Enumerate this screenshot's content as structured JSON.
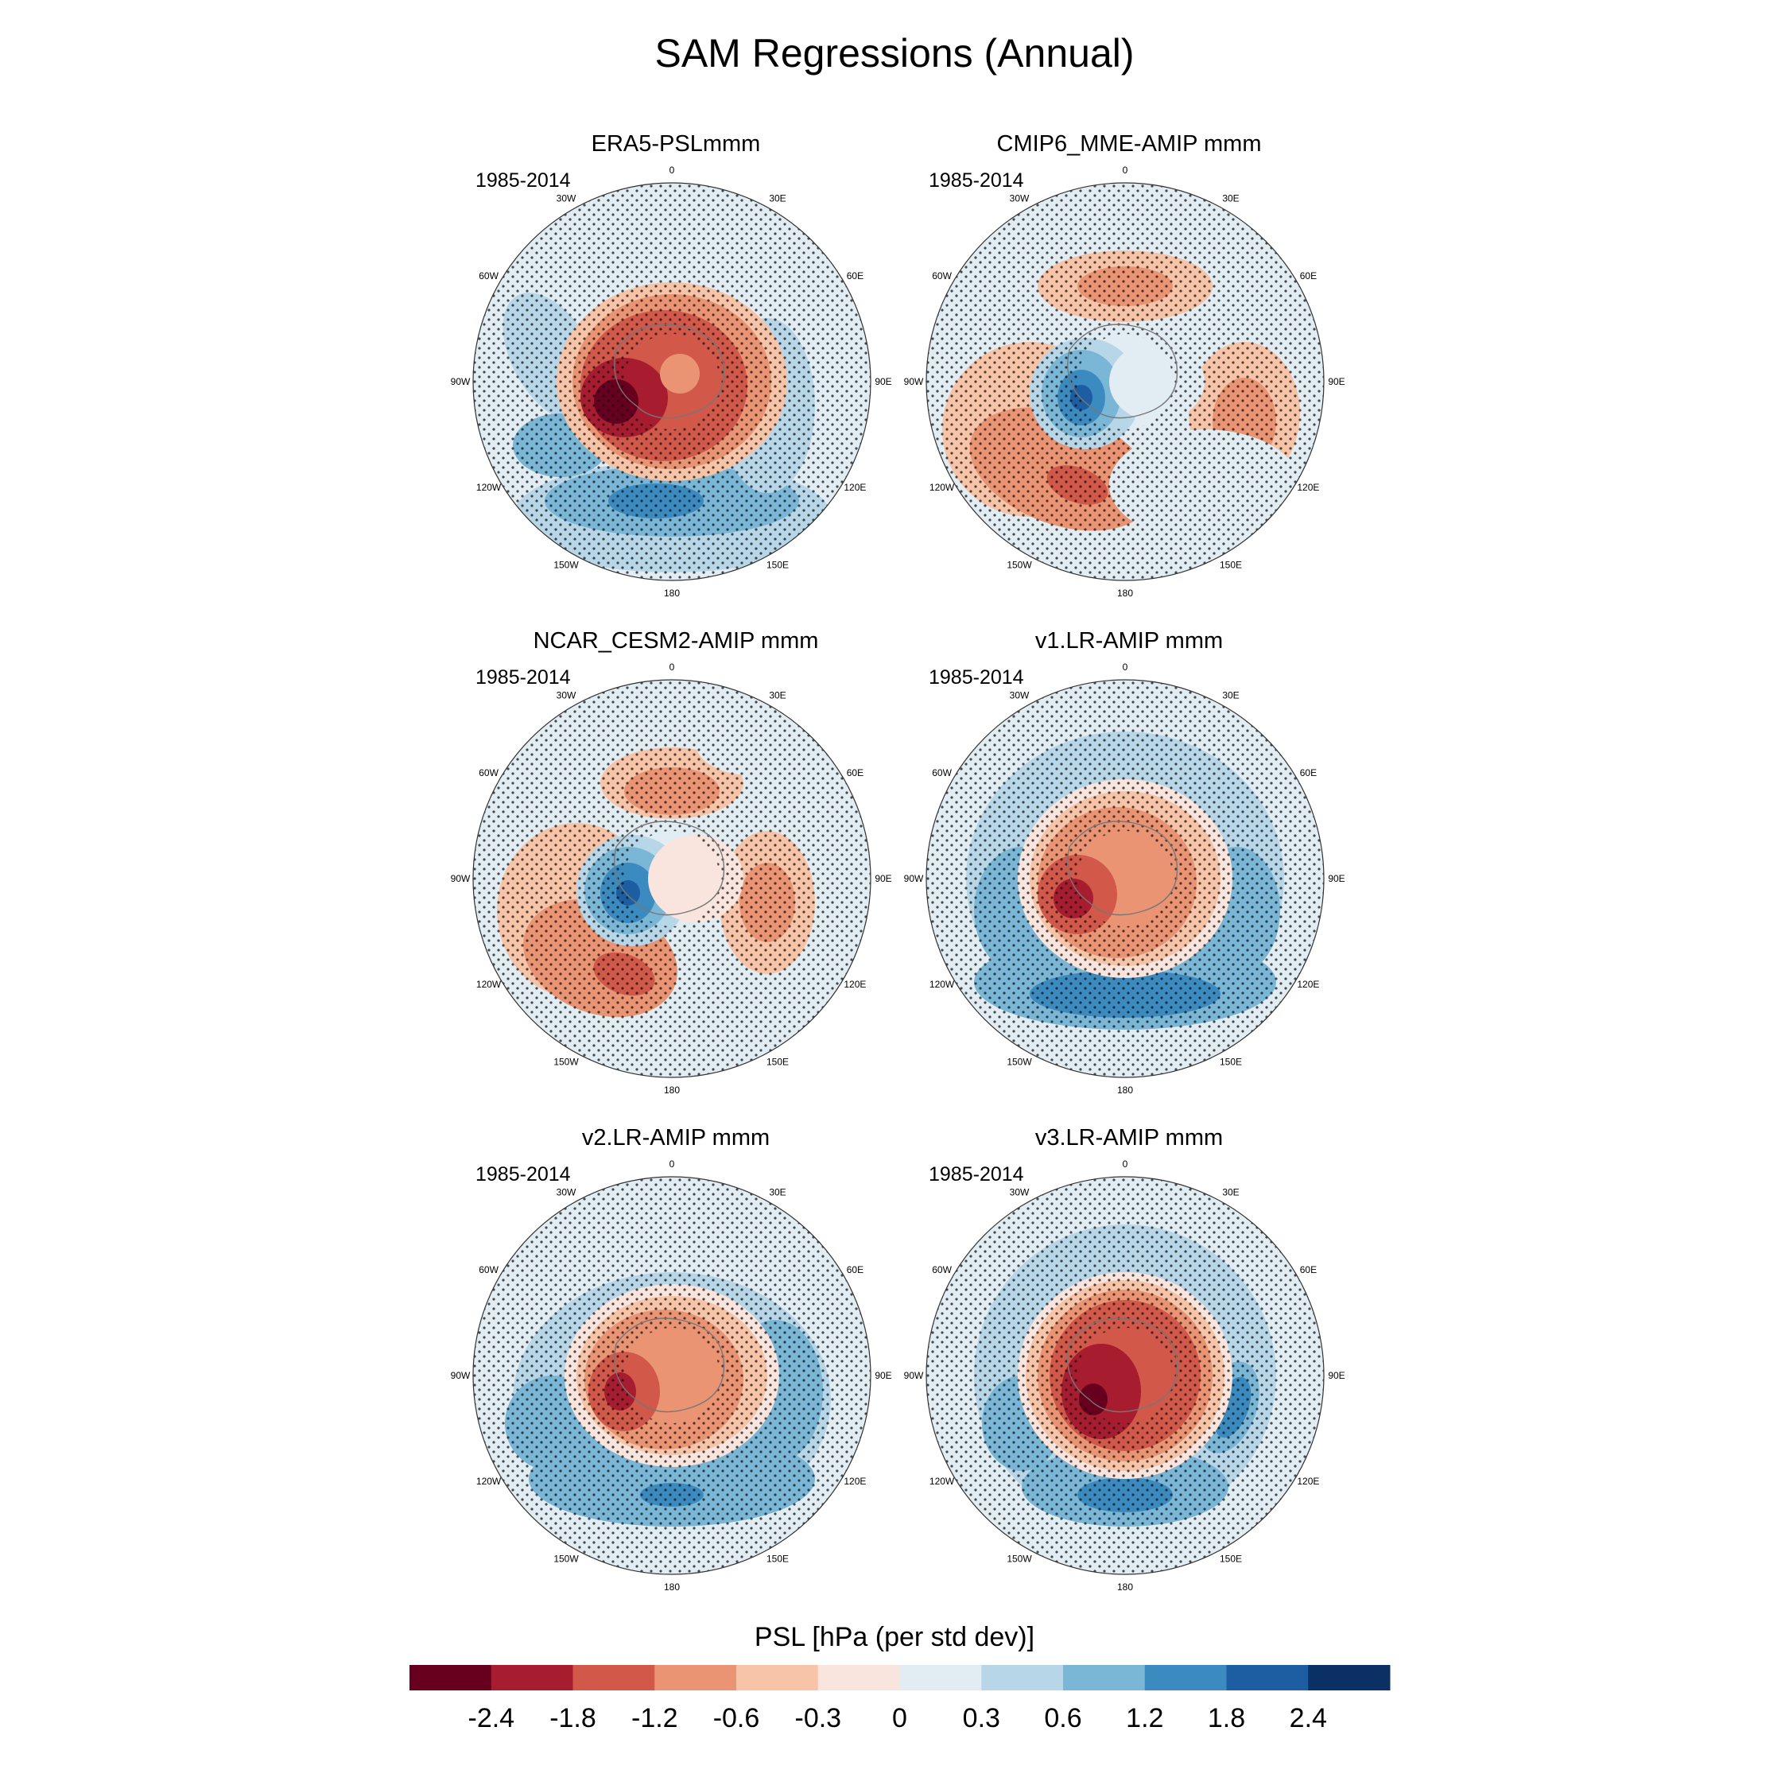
{
  "title": "SAM Regressions (Annual)",
  "colorbar": {
    "title": "PSL [hPa (per std dev)]",
    "tick_labels": [
      "-2.4",
      "-1.8",
      "-1.2",
      "-0.6",
      "-0.3",
      "0",
      "0.3",
      "0.6",
      "1.2",
      "1.8",
      "2.4"
    ],
    "colors": [
      "#67001f",
      "#a81c2f",
      "#d25849",
      "#eb9474",
      "#f8c4a8",
      "#f9e5dd",
      "#e2ecf3",
      "#b7d6e8",
      "#7ab6d6",
      "#3b8bc1",
      "#1d5ea2",
      "#0a3064"
    ]
  },
  "longitude_labels": [
    "0",
    "30E",
    "60E",
    "90E",
    "120E",
    "150E",
    "180",
    "150W",
    "120W",
    "90W",
    "60W",
    "30W"
  ],
  "panels": [
    {
      "title": "ERA5-PSLmmm",
      "period": "1985-2014"
    },
    {
      "title": "CMIP6_MME-AMIP  mmm",
      "period": "1985-2014"
    },
    {
      "title": "NCAR_CESM2-AMIP  mmm",
      "period": "1985-2014"
    },
    {
      "title": "v1.LR-AMIP  mmm",
      "period": "1985-2014"
    },
    {
      "title": "v2.LR-AMIP  mmm",
      "period": "1985-2014"
    },
    {
      "title": "v3.LR-AMIP  mmm",
      "period": "1985-2014"
    }
  ]
}
